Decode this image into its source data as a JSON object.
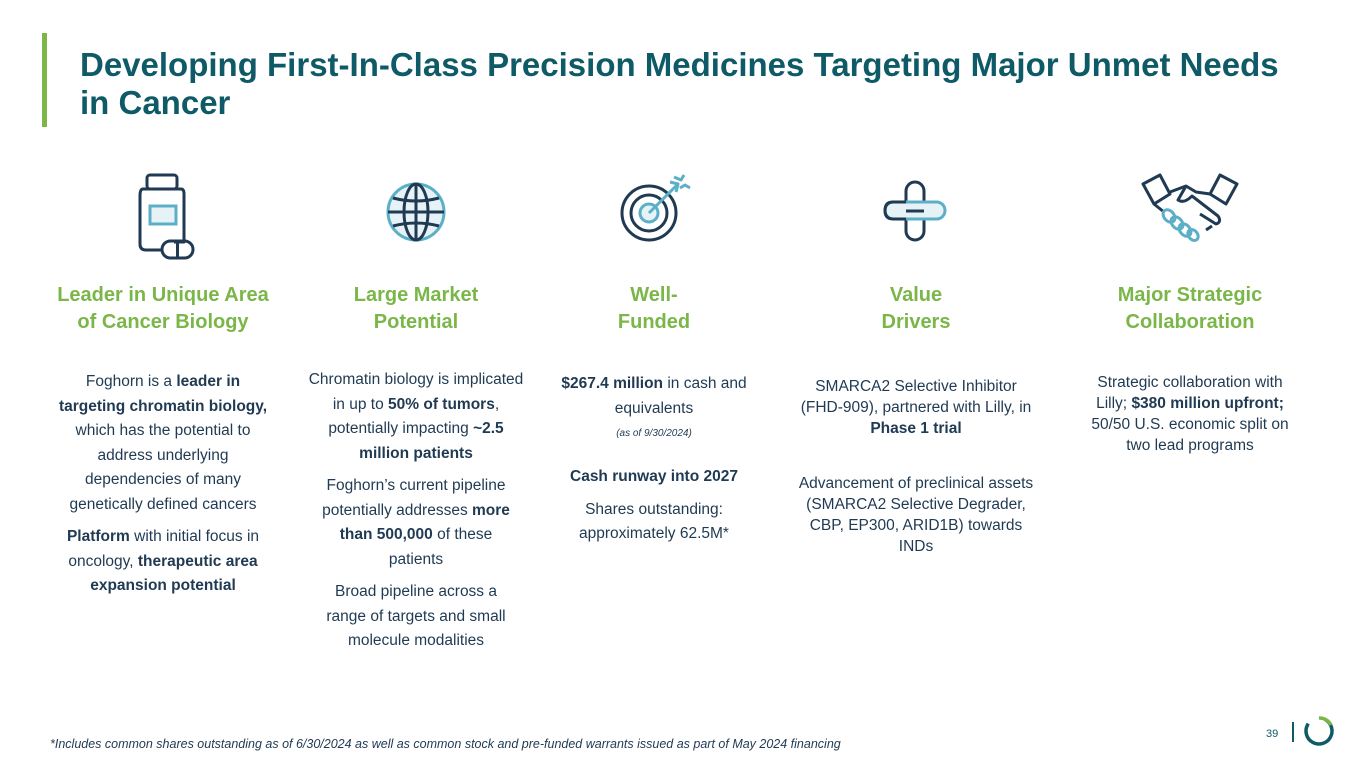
{
  "title": "Developing First-In-Class Precision Medicines Targeting Major Unmet Needs in Cancer",
  "colors": {
    "brand_green": "#7ab648",
    "brand_teal": "#0e5a67",
    "text_navy": "#1f3a52",
    "icon_light": "#5bb0c8"
  },
  "columns": [
    {
      "icon": "pill-bottle-icon",
      "heading": [
        "Leader in Unique Area",
        "of Cancer Biology"
      ],
      "p1": {
        "t1": "Foghorn is a ",
        "b1": "leader in targeting chromatin biology,",
        "t2": " which has the potential to address underlying dependencies of many genetically defined cancers"
      },
      "p2": {
        "b1": "Platform",
        "t1": " with initial focus in oncology, ",
        "b2": "therapeutic area expansion potential"
      }
    },
    {
      "icon": "globe-icon",
      "heading": [
        "Large Market",
        "Potential"
      ],
      "p1": {
        "t1": "Chromatin biology is implicated in up to ",
        "b1": "50% of tumors",
        "t2": ", potentially impacting ",
        "b2": "~2.5 million patients"
      },
      "p2": {
        "t1": "Foghorn’s current pipeline potentially addresses ",
        "b1": "more than 500,000",
        "t2": " of these patients"
      },
      "p3": "Broad pipeline across a range of targets and small molecule modalities"
    },
    {
      "icon": "target-icon",
      "heading": [
        "Well-",
        "Funded"
      ],
      "p1": {
        "b1": "$267.4 million",
        "t1": " in cash and equivalents"
      },
      "note": "(as of 9/30/2024)",
      "p2": "Cash runway into 2027",
      "p3": [
        "Shares outstanding:",
        "approximately 62.5M*"
      ]
    },
    {
      "icon": "medical-cross-icon",
      "heading": [
        "Value",
        "Drivers"
      ],
      "p1": {
        "t1": "SMARCA2 Selective Inhibitor (FHD-909), partnered with Lilly, in ",
        "b1": "Phase 1 trial"
      },
      "p2": "Advancement of preclinical assets (SMARCA2 Selective Degrader, CBP, EP300, ARID1B) towards INDs"
    },
    {
      "icon": "handshake-icon",
      "heading": [
        "Major Strategic",
        "Collaboration"
      ],
      "p1": {
        "t1": "Strategic collaboration with Lilly; ",
        "b1": "$380 million upfront;",
        "t2": " 50/50 U.S. economic split on two lead programs"
      }
    }
  ],
  "footnote": "*Includes common shares outstanding as of 6/30/2024 as well as common stock and pre-funded warrants issued as part of May 2024 financing",
  "page_number": "39"
}
